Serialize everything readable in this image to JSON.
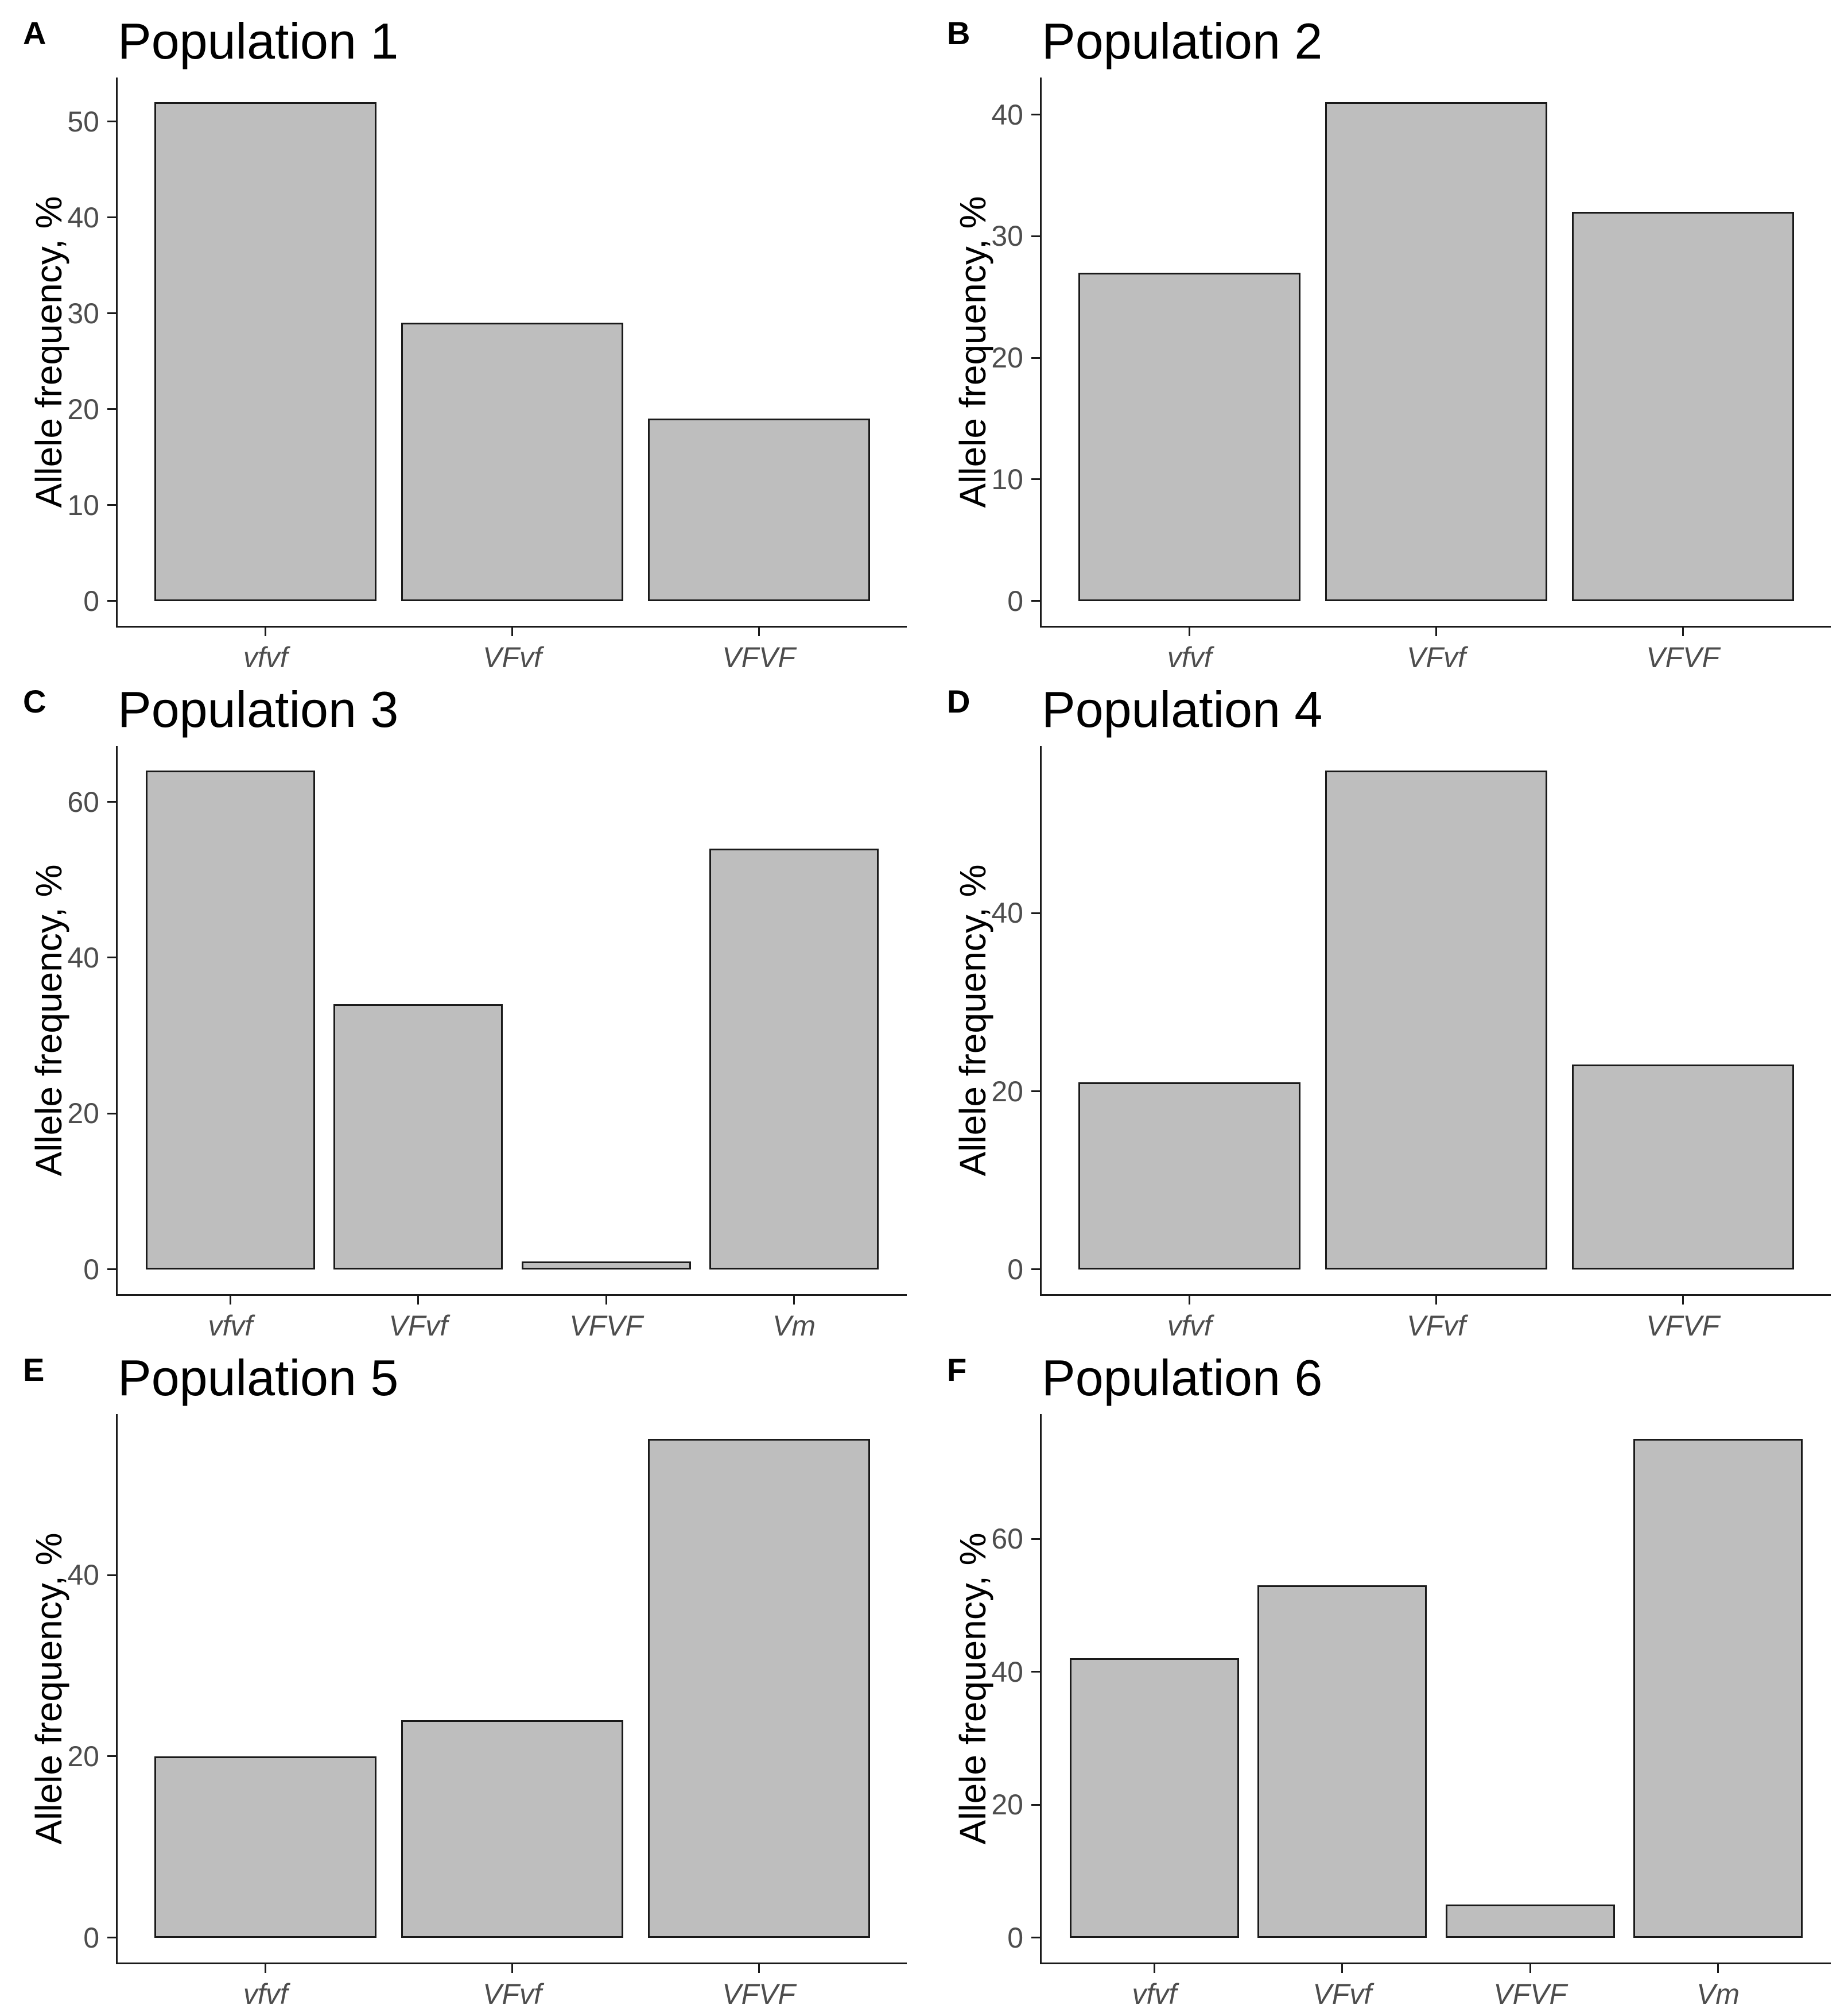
{
  "figure": {
    "ylabel": "Allele frequency, %",
    "colors": {
      "bar_fill": "#bebebe",
      "bar_border": "#1a1a1a",
      "axis": "#1a1a1a",
      "tick_text": "#4d4d4d",
      "title_text": "#000000"
    }
  },
  "chart_data": [
    {
      "type": "bar",
      "panel_letter": "A",
      "title": "Population 1",
      "categories": [
        "vfvf",
        "VFvf",
        "VFVF"
      ],
      "values": [
        52,
        29,
        19
      ],
      "yticks": [
        0,
        10,
        20,
        30,
        40,
        50
      ],
      "xlabel": "",
      "ylabel": "Allele frequency, %",
      "ylim": [
        0,
        52
      ],
      "grid": false,
      "legend": "none"
    },
    {
      "type": "bar",
      "panel_letter": "B",
      "title": "Population 2",
      "categories": [
        "vfvf",
        "VFvf",
        "VFVF"
      ],
      "values": [
        27,
        41,
        32
      ],
      "yticks": [
        0,
        10,
        20,
        30,
        40
      ],
      "xlabel": "",
      "ylabel": "Allele frequency, %",
      "ylim": [
        0,
        41
      ],
      "grid": false,
      "legend": "none"
    },
    {
      "type": "bar",
      "panel_letter": "C",
      "title": "Population 3",
      "categories": [
        "vfvf",
        "VFvf",
        "VFVF",
        "Vm"
      ],
      "values": [
        64,
        34,
        1,
        54
      ],
      "yticks": [
        0,
        20,
        40,
        60
      ],
      "xlabel": "",
      "ylabel": "Allele frequency, %",
      "ylim": [
        0,
        64
      ],
      "grid": false,
      "legend": "none"
    },
    {
      "type": "bar",
      "panel_letter": "D",
      "title": "Population 4",
      "categories": [
        "vfvf",
        "VFvf",
        "VFVF"
      ],
      "values": [
        21,
        56,
        23
      ],
      "yticks": [
        0,
        20,
        40
      ],
      "xlabel": "",
      "ylabel": "Allele frequency, %",
      "ylim": [
        0,
        56
      ],
      "grid": false,
      "legend": "none"
    },
    {
      "type": "bar",
      "panel_letter": "E",
      "title": "Population 5",
      "categories": [
        "vfvf",
        "VFvf",
        "VFVF"
      ],
      "values": [
        20,
        24,
        55
      ],
      "yticks": [
        0,
        20,
        40
      ],
      "xlabel": "",
      "ylabel": "Allele frequency, %",
      "ylim": [
        0,
        55
      ],
      "grid": false,
      "legend": "none"
    },
    {
      "type": "bar",
      "panel_letter": "F",
      "title": "Population 6",
      "categories": [
        "vfvf",
        "VFvf",
        "VFVF",
        "Vm"
      ],
      "values": [
        42,
        53,
        5,
        75
      ],
      "yticks": [
        0,
        20,
        40,
        60
      ],
      "xlabel": "",
      "ylabel": "Allele frequency, %",
      "ylim": [
        0,
        75
      ],
      "grid": false,
      "legend": "none"
    }
  ]
}
